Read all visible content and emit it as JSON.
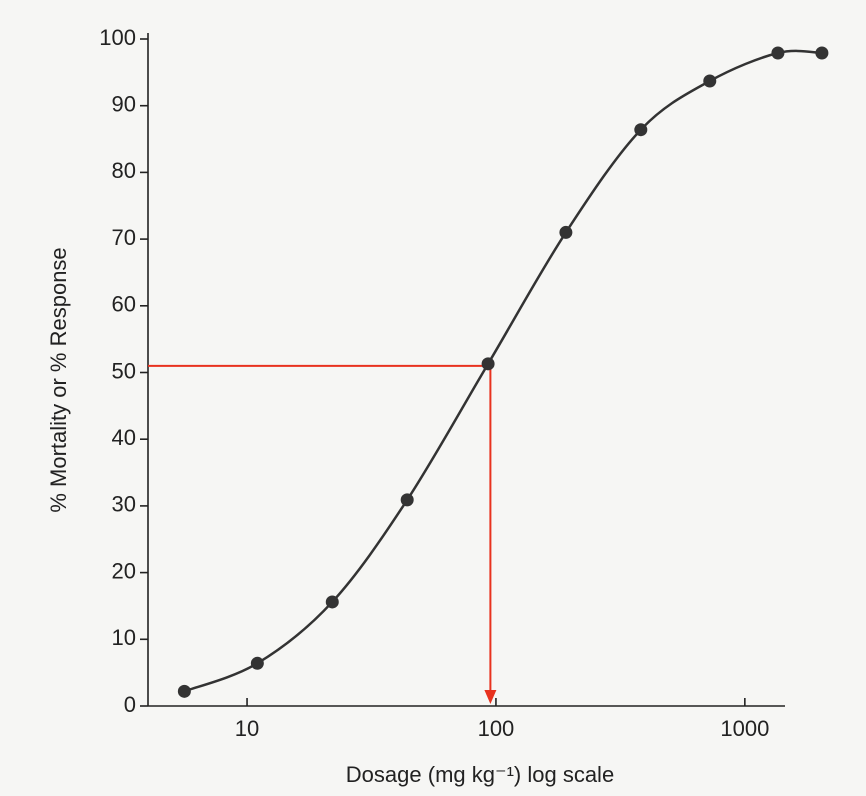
{
  "chart_data": {
    "type": "line",
    "xlabel": "Dosage (mg kg⁻¹) log scale",
    "ylabel": "% Mortality or % Response",
    "x_log_scale": true,
    "xlim": [
      4,
      1450
    ],
    "xticks": [
      10,
      100,
      1000
    ],
    "ylim": [
      0,
      100
    ],
    "yticks": [
      0,
      10,
      20,
      30,
      40,
      50,
      60,
      70,
      80,
      90,
      100
    ],
    "series": [
      {
        "color": "#333333",
        "x": [
          5.6,
          11,
          22,
          44,
          93,
          191,
          382,
          723,
          1358,
          2040
        ],
        "values": [
          2.2,
          6.4,
          15.6,
          30.9,
          51.3,
          71,
          86.4,
          93.7,
          97.9,
          97.9
        ]
      }
    ],
    "reference": {
      "x": 95,
      "y": 51,
      "color": "#e8321e"
    }
  }
}
